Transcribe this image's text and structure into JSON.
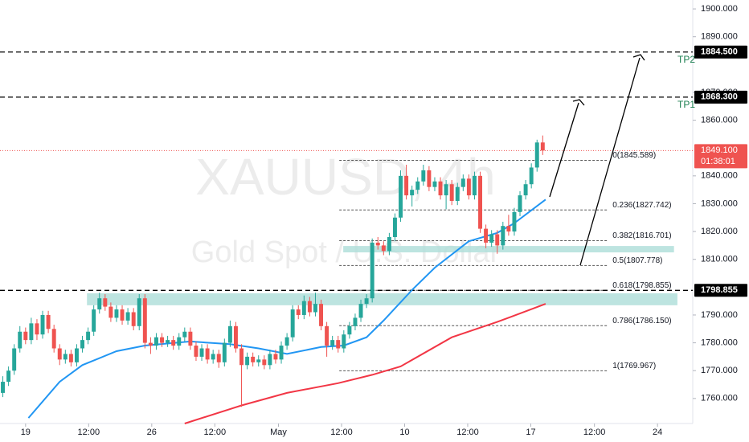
{
  "chart_data": {
    "type": "candlestick",
    "symbol": "XAUUSD, 4h",
    "description": "Gold Spot / U.S. Dollar",
    "up_color": "#26a69a",
    "down_color": "#ef5350",
    "grid": false,
    "xlim": [
      -0.5,
      121.4
    ],
    "ylim": [
      1751,
      1903.2
    ],
    "xticks": [
      {
        "value": 4,
        "label": "19"
      },
      {
        "value": 15.1,
        "label": "12:00"
      },
      {
        "value": 26.2,
        "label": "26"
      },
      {
        "value": 37.3,
        "label": "12:00"
      },
      {
        "value": 48.5,
        "label": "May"
      },
      {
        "value": 59.6,
        "label": "12:00"
      },
      {
        "value": 70.7,
        "label": "10"
      },
      {
        "value": 81.8,
        "label": "12:00"
      },
      {
        "value": 92.9,
        "label": "17"
      },
      {
        "value": 104.1,
        "label": "12:00"
      },
      {
        "value": 115.2,
        "label": "24"
      }
    ],
    "yticks": [
      {
        "value": 1900,
        "label": "1900.000"
      },
      {
        "value": 1890,
        "label": "1890.000"
      },
      {
        "value": 1870,
        "label": "1870.000"
      },
      {
        "value": 1860,
        "label": "1860.000"
      },
      {
        "value": 1840,
        "label": "1840.000"
      },
      {
        "value": 1830,
        "label": "1830.000"
      },
      {
        "value": 1820,
        "label": "1820.000"
      },
      {
        "value": 1810,
        "label": "1810.000"
      },
      {
        "value": 1790,
        "label": "1790.000"
      },
      {
        "value": 1780,
        "label": "1780.000"
      },
      {
        "value": 1770,
        "label": "1770.000"
      },
      {
        "value": 1760,
        "label": "1760.000"
      }
    ],
    "candles": [
      [
        1762,
        1768,
        1760.5,
        1766
      ],
      [
        1766,
        1771.5,
        1764.5,
        1770
      ],
      [
        1770,
        1779.5,
        1768.5,
        1778
      ],
      [
        1778,
        1786,
        1776.5,
        1784
      ],
      [
        1784,
        1785.5,
        1779.5,
        1781
      ],
      [
        1781,
        1789,
        1779.5,
        1787
      ],
      [
        1787,
        1788.5,
        1781,
        1783
      ],
      [
        1783,
        1791.5,
        1781.5,
        1790
      ],
      [
        1790,
        1791.5,
        1783.5,
        1785
      ],
      [
        1785,
        1786.5,
        1776.5,
        1778
      ],
      [
        1778,
        1779.5,
        1772,
        1774
      ],
      [
        1774,
        1777.5,
        1772.5,
        1776
      ],
      [
        1776,
        1777.5,
        1771.5,
        1773
      ],
      [
        1773,
        1779.5,
        1771.5,
        1778
      ],
      [
        1778,
        1782.5,
        1776.5,
        1781
      ],
      [
        1781,
        1785.5,
        1779.5,
        1784
      ],
      [
        1784,
        1793.5,
        1782.5,
        1792
      ],
      [
        1792,
        1798,
        1790.5,
        1796
      ],
      [
        1796,
        1797.5,
        1791.5,
        1793
      ],
      [
        1793,
        1794.5,
        1787.5,
        1789
      ],
      [
        1789,
        1793.5,
        1787.5,
        1792
      ],
      [
        1792,
        1793.5,
        1786.5,
        1788
      ],
      [
        1788,
        1792.5,
        1786.5,
        1791
      ],
      [
        1791,
        1792.5,
        1784.5,
        1786
      ],
      [
        1786,
        1797.5,
        1784.5,
        1796
      ],
      [
        1796,
        1797.5,
        1778,
        1780
      ],
      [
        1780,
        1782,
        1776,
        1779
      ],
      [
        1779,
        1783.5,
        1777.5,
        1782
      ],
      [
        1782,
        1783.5,
        1778.5,
        1780
      ],
      [
        1780,
        1782.5,
        1778.5,
        1781
      ],
      [
        1781,
        1782.5,
        1777.5,
        1779
      ],
      [
        1779,
        1783.5,
        1777.5,
        1782
      ],
      [
        1782,
        1785.5,
        1780.5,
        1784
      ],
      [
        1784,
        1785.5,
        1777.5,
        1779
      ],
      [
        1779,
        1780.5,
        1773.5,
        1775
      ],
      [
        1775,
        1779.5,
        1773.5,
        1778
      ],
      [
        1778,
        1779.5,
        1772.5,
        1774
      ],
      [
        1774,
        1777.5,
        1772.5,
        1776
      ],
      [
        1776,
        1777.5,
        1771,
        1773
      ],
      [
        1773,
        1781.5,
        1771.5,
        1780
      ],
      [
        1780,
        1788,
        1778.5,
        1786
      ],
      [
        1786,
        1787.5,
        1776.5,
        1778
      ],
      [
        1778,
        1779.5,
        1757,
        1772
      ],
      [
        1772,
        1776.5,
        1770.5,
        1775
      ],
      [
        1775,
        1776.5,
        1771.5,
        1773
      ],
      [
        1773,
        1775.5,
        1771.5,
        1774
      ],
      [
        1774,
        1775.5,
        1770.5,
        1772
      ],
      [
        1772,
        1777.5,
        1770.5,
        1776
      ],
      [
        1776,
        1777.5,
        1772.5,
        1774
      ],
      [
        1774,
        1780.5,
        1772.5,
        1779
      ],
      [
        1779,
        1783.5,
        1777.5,
        1782
      ],
      [
        1782,
        1793.5,
        1780.5,
        1792
      ],
      [
        1792,
        1793.5,
        1788.5,
        1790
      ],
      [
        1790,
        1797,
        1788.5,
        1795
      ],
      [
        1795,
        1796.5,
        1789.5,
        1791
      ],
      [
        1791,
        1798,
        1789.5,
        1794
      ],
      [
        1794,
        1795.5,
        1784.5,
        1786
      ],
      [
        1786,
        1787.5,
        1775,
        1779
      ],
      [
        1779,
        1782.5,
        1777.5,
        1781
      ],
      [
        1781,
        1782.5,
        1776.5,
        1778
      ],
      [
        1778,
        1784.5,
        1776.5,
        1783
      ],
      [
        1783,
        1787.5,
        1781.5,
        1786
      ],
      [
        1786,
        1790.5,
        1784.5,
        1789
      ],
      [
        1789,
        1795.5,
        1787.5,
        1794
      ],
      [
        1794,
        1797.5,
        1792.5,
        1796
      ],
      [
        1796,
        1817.5,
        1794.5,
        1816
      ],
      [
        1816,
        1818,
        1813.5,
        1815
      ],
      [
        1815,
        1816.5,
        1811.5,
        1813
      ],
      [
        1813,
        1819.5,
        1811.5,
        1818
      ],
      [
        1818,
        1826.5,
        1816.5,
        1825
      ],
      [
        1825,
        1842,
        1823.5,
        1840
      ],
      [
        1840,
        1844,
        1831.5,
        1833
      ],
      [
        1833,
        1836.5,
        1829,
        1835
      ],
      [
        1835,
        1839.5,
        1833.5,
        1838
      ],
      [
        1838,
        1844,
        1836.5,
        1842
      ],
      [
        1842,
        1843.5,
        1834.5,
        1836
      ],
      [
        1836,
        1839.5,
        1834.5,
        1838
      ],
      [
        1838,
        1839.5,
        1831.5,
        1833
      ],
      [
        1833,
        1838.5,
        1828,
        1837
      ],
      [
        1837,
        1838.5,
        1829.5,
        1831
      ],
      [
        1831,
        1837.5,
        1829.5,
        1836
      ],
      [
        1836,
        1840.5,
        1834.5,
        1839
      ],
      [
        1839,
        1840.5,
        1831.5,
        1833
      ],
      [
        1833,
        1841.5,
        1831.5,
        1840
      ],
      [
        1840,
        1841.5,
        1819.5,
        1821
      ],
      [
        1821,
        1822.5,
        1814,
        1816
      ],
      [
        1816,
        1820.5,
        1814.5,
        1819
      ],
      [
        1819,
        1820.5,
        1812,
        1815
      ],
      [
        1815,
        1823.5,
        1813.5,
        1822
      ],
      [
        1822,
        1826,
        1818.5,
        1820
      ],
      [
        1820,
        1828.5,
        1818.5,
        1827
      ],
      [
        1827,
        1834.5,
        1825.5,
        1833
      ],
      [
        1833,
        1838.5,
        1831.5,
        1837
      ],
      [
        1837,
        1844.5,
        1835.5,
        1843
      ],
      [
        1843,
        1853,
        1841.5,
        1852
      ],
      [
        1852,
        1854.5,
        1847.5,
        1849.1
      ]
    ],
    "lines": [
      {
        "color": "#2196f3",
        "x": [
          4.5,
          10,
          14,
          20,
          25,
          33,
          40,
          45,
          50,
          56,
          60,
          64,
          67,
          72,
          76,
          82,
          87,
          90,
          95.5
        ],
        "values": [
          1753,
          1766,
          1772,
          1777,
          1779,
          1780.5,
          1779.5,
          1778,
          1776,
          1778.5,
          1779,
          1782,
          1788,
          1799,
          1807,
          1816.5,
          1819.5,
          1823,
          1831.5
        ]
      },
      {
        "color": "#f23645",
        "x": [
          32,
          42,
          50,
          59,
          65,
          70,
          79,
          87,
          95.5
        ],
        "values": [
          1751,
          1757.5,
          1762,
          1765.5,
          1768.5,
          1771.5,
          1782,
          1787.5,
          1794
        ]
      }
    ],
    "zones": [
      {
        "x0": 14.8,
        "x1": 118.7,
        "top": 1797.8,
        "bottom": 1793.5,
        "color": "#b2dfdb"
      },
      {
        "x0": 59.9,
        "x1": 118.1,
        "top": 1814.8,
        "bottom": 1812.5,
        "color": "#b2dfdb"
      }
    ],
    "fib": {
      "x0": 59.2,
      "x1": 106.3,
      "levels": [
        {
          "value": 1845.589,
          "label": "0(1845.589)"
        },
        {
          "value": 1827.742,
          "label": "0.236(1827.742)"
        },
        {
          "value": 1816.701,
          "label": "0.382(1816.701)"
        },
        {
          "value": 1807.778,
          "label": "0.5(1807.778)"
        },
        {
          "value": 1798.855,
          "label": "0.618(1798.855)"
        },
        {
          "value": 1786.15,
          "label": "0.786(1786.150)"
        },
        {
          "value": 1769.967,
          "label": "1(1769.967)"
        }
      ]
    },
    "levels": [
      {
        "value": 1884.5,
        "label": "1884.500",
        "tag": "TP2"
      },
      {
        "value": 1868.3,
        "label": "1868.300",
        "tag": "TP1"
      },
      {
        "value": 1798.855,
        "label": "1798.855"
      }
    ],
    "last_price": {
      "value": 1849.1,
      "label": "1849.100",
      "countdown": "01:38:01"
    }
  }
}
